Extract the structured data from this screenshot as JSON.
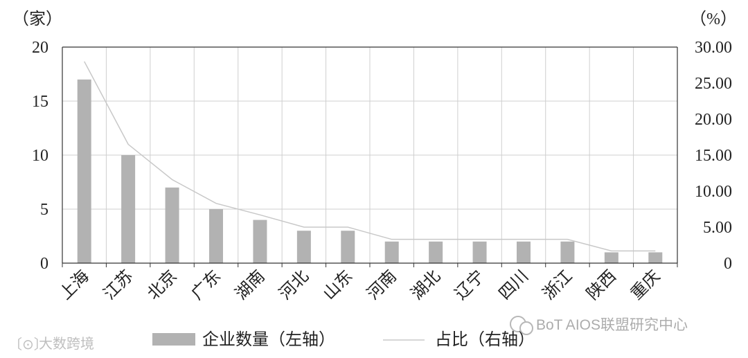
{
  "chart_data": {
    "type": "bar",
    "categories": [
      "上海",
      "江苏",
      "北京",
      "广东",
      "湖南",
      "河北",
      "山东",
      "河南",
      "湖北",
      "辽宁",
      "四川",
      "浙江",
      "陕西",
      "重庆"
    ],
    "series": [
      {
        "name": "企业数量（左轴）",
        "type": "bar",
        "axis": "left",
        "color": "#b2b2b2",
        "values": [
          17,
          10,
          7,
          5,
          4,
          3,
          3,
          2,
          2,
          2,
          2,
          2,
          1,
          1
        ]
      },
      {
        "name": "占比（右轴）",
        "type": "line",
        "axis": "right",
        "color": "#c8c8c8",
        "values": [
          28.0,
          16.5,
          11.6,
          8.3,
          6.7,
          5.0,
          5.0,
          3.3,
          3.3,
          3.3,
          3.3,
          3.3,
          1.7,
          1.7
        ]
      }
    ],
    "y_left": {
      "unit": "（家）",
      "ylim": [
        0,
        20
      ],
      "ticks": [
        "0",
        "5",
        "10",
        "15",
        "20"
      ]
    },
    "y_right": {
      "unit": "（%）",
      "ylim": [
        0,
        30
      ],
      "ticks": [
        "0",
        "5.00",
        "10.00",
        "15.00",
        "20.00",
        "25.00",
        "30.00"
      ]
    },
    "grid": true,
    "legend": "bottom-center"
  },
  "watermarks": {
    "left": "大数跨境",
    "right": "BoT AIOS联盟研究中心"
  }
}
